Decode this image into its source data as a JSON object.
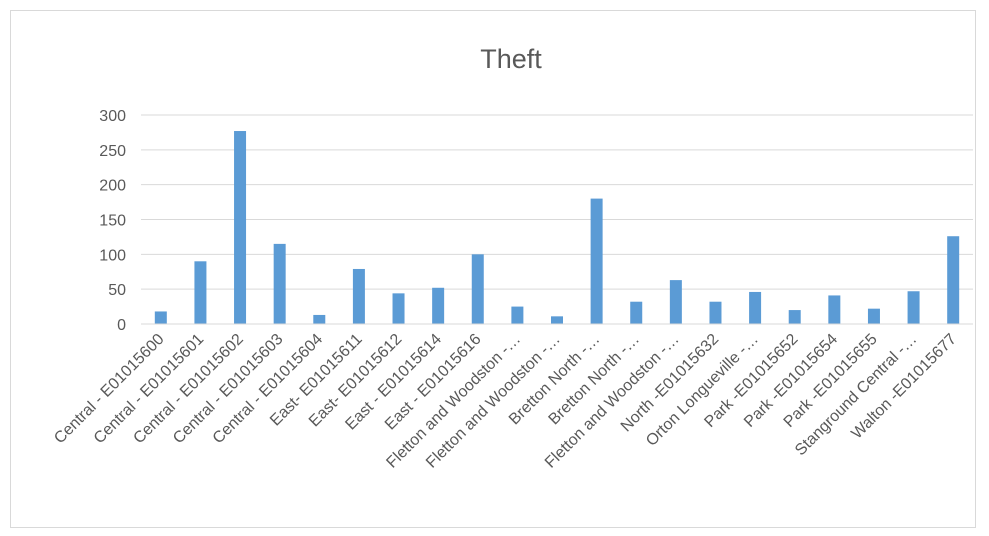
{
  "chart_data": {
    "type": "bar",
    "title": "Theft",
    "xlabel": "",
    "ylabel": "",
    "ylim": [
      0,
      300
    ],
    "yticks": [
      0,
      50,
      100,
      150,
      200,
      250,
      300
    ],
    "grid": true,
    "legend": "none",
    "bar_color": "#5b9bd5",
    "categories": [
      "Central - E01015600",
      "Central - E01015601",
      "Central - E01015602",
      "Central - E01015603",
      "Central - E01015604",
      "East- E01015611",
      "East- E01015612",
      "East - E01015614",
      "East - E01015616",
      "Fletton and Woodston -…",
      "Fletton and Woodston -…",
      "Bretton North -…",
      "Bretton North -…",
      "Fletton and Woodston -…",
      "North -E01015632",
      "Orton Longueville -…",
      "Park -E01015652",
      "Park -E01015654",
      "Park -E01015655",
      "Stanground Central -…",
      "Walton -E01015677"
    ],
    "values": [
      18,
      90,
      277,
      115,
      13,
      79,
      44,
      52,
      100,
      25,
      11,
      180,
      32,
      63,
      32,
      46,
      20,
      41,
      22,
      47,
      126
    ]
  }
}
